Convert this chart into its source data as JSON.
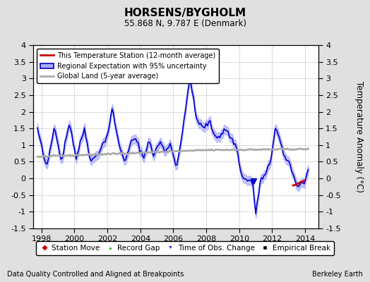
{
  "title": "HORSENS/BYGHOLM",
  "subtitle": "55.868 N, 9.787 E (Denmark)",
  "ylabel": "Temperature Anomaly (°C)",
  "ylim": [
    -1.5,
    4.0
  ],
  "xlim": [
    1997.5,
    2014.8
  ],
  "xticks": [
    1998,
    2000,
    2002,
    2004,
    2006,
    2008,
    2010,
    2012,
    2014
  ],
  "yticks": [
    -1.5,
    -1.0,
    -0.5,
    0,
    0.5,
    1.0,
    1.5,
    2.0,
    2.5,
    3.0,
    3.5,
    4.0
  ],
  "ytick_labels": [
    "-1.5",
    "-1",
    "-0.5",
    "0",
    "0.5",
    "1",
    "1.5",
    "2",
    "2.5",
    "3",
    "3.5",
    "4"
  ],
  "footer_left": "Data Quality Controlled and Aligned at Breakpoints",
  "footer_right": "Berkeley Earth",
  "bg_color": "#e0e0e0",
  "plot_bg_color": "#ffffff",
  "regional_color": "#0000cc",
  "regional_uncertainty_color": "#aaaaff",
  "station_color": "#cc0000",
  "global_color": "#aaaaaa",
  "obs_change_marker_color": "#0000cc",
  "station_move_color": "#cc0000",
  "record_gap_color": "#00aa00",
  "empirical_break_color": "#000000",
  "regional_keypoints_t": [
    1997.75,
    1998.3,
    1998.8,
    1999.2,
    1999.7,
    2000.1,
    2000.6,
    2001.0,
    2001.5,
    2002.0,
    2002.3,
    2002.7,
    2003.1,
    2003.5,
    2003.8,
    2004.2,
    2004.5,
    2004.8,
    2005.2,
    2005.5,
    2005.8,
    2006.2,
    2006.6,
    2007.0,
    2007.4,
    2007.8,
    2008.2,
    2008.5,
    2008.8,
    2009.2,
    2009.5,
    2009.8,
    2010.2,
    2010.5,
    2010.8,
    2011.0,
    2011.3,
    2011.6,
    2011.9,
    2012.2,
    2012.5,
    2012.8,
    2013.0,
    2013.2,
    2013.5,
    2013.8,
    2014.0,
    2014.2
  ],
  "regional_keypoints_v": [
    1.5,
    0.3,
    1.6,
    0.5,
    1.7,
    0.6,
    1.5,
    0.5,
    0.8,
    1.3,
    2.1,
    1.0,
    0.5,
    1.2,
    1.1,
    0.6,
    1.15,
    0.7,
    1.1,
    0.8,
    1.05,
    0.35,
    1.5,
    3.05,
    1.8,
    1.5,
    1.7,
    1.3,
    1.25,
    1.5,
    1.2,
    1.0,
    0.0,
    -0.05,
    -0.08,
    -1.05,
    -0.05,
    0.1,
    0.5,
    1.55,
    1.1,
    0.5,
    0.6,
    0.2,
    -0.2,
    -0.15,
    -0.1,
    0.3
  ],
  "global_keypoints_t": [
    1997.75,
    2003.0,
    2008.0,
    2014.2
  ],
  "global_keypoints_v": [
    0.65,
    0.75,
    0.85,
    0.88
  ],
  "station_t_start": 2013.2,
  "station_t_end": 2013.95,
  "station_keypoints_t": [
    2013.2,
    2013.5,
    2013.7,
    2013.95
  ],
  "station_keypoints_v": [
    -0.22,
    -0.18,
    -0.12,
    -0.07
  ],
  "obs_change_t": 2010.85,
  "obs_change_v": -0.08,
  "uncertainty": 0.13,
  "t_start": 1997.75,
  "t_end": 2014.2
}
